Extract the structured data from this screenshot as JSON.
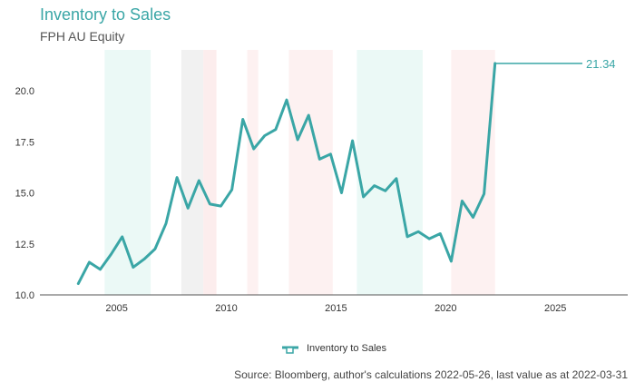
{
  "header": {
    "title": "Inventory to Sales",
    "subtitle": "FPH AU Equity"
  },
  "footer": {
    "source": "Source: Bloomberg, author's calculations 2022-05-26, last value as at 2022-03-31"
  },
  "chart_data": {
    "type": "line",
    "title": "Inventory to Sales",
    "subtitle": "FPH AU Equity",
    "xlabel": "",
    "ylabel": "",
    "xlim": [
      2001.5,
      2028.3
    ],
    "ylim": [
      10.0,
      22.0
    ],
    "x_ticks": [
      2005,
      2010,
      2015,
      2020,
      2025
    ],
    "y_ticks": [
      10.0,
      12.5,
      15.0,
      17.5,
      20.0
    ],
    "x_tick_labels": [
      "2005",
      "2010",
      "2015",
      "2020",
      "2025"
    ],
    "y_tick_labels": [
      "10.0",
      "12.5",
      "15.0",
      "17.5",
      "20.0"
    ],
    "grid": false,
    "legend_position": "bottom-center",
    "color": "#3aa6a6",
    "series": [
      {
        "name": "Inventory to Sales",
        "points": [
          [
            2003.25,
            10.55
          ],
          [
            2003.75,
            11.6
          ],
          [
            2004.25,
            11.25
          ],
          [
            2004.75,
            12.0
          ],
          [
            2005.25,
            12.85
          ],
          [
            2005.75,
            11.35
          ],
          [
            2006.25,
            11.75
          ],
          [
            2006.75,
            12.25
          ],
          [
            2007.25,
            13.5
          ],
          [
            2007.75,
            15.75
          ],
          [
            2008.25,
            14.25
          ],
          [
            2008.75,
            15.6
          ],
          [
            2009.25,
            14.45
          ],
          [
            2009.75,
            14.35
          ],
          [
            2010.25,
            15.15
          ],
          [
            2010.75,
            18.6
          ],
          [
            2011.25,
            17.15
          ],
          [
            2011.75,
            17.8
          ],
          [
            2012.25,
            18.1
          ],
          [
            2012.75,
            19.55
          ],
          [
            2013.25,
            17.6
          ],
          [
            2013.75,
            18.8
          ],
          [
            2014.25,
            16.65
          ],
          [
            2014.75,
            16.9
          ],
          [
            2015.25,
            15.0
          ],
          [
            2015.75,
            17.55
          ],
          [
            2016.25,
            14.8
          ],
          [
            2016.75,
            15.35
          ],
          [
            2017.25,
            15.1
          ],
          [
            2017.75,
            15.7
          ],
          [
            2018.25,
            12.85
          ],
          [
            2018.75,
            13.1
          ],
          [
            2019.25,
            12.75
          ],
          [
            2019.75,
            13.0
          ],
          [
            2020.25,
            11.65
          ],
          [
            2020.75,
            14.6
          ],
          [
            2021.25,
            13.8
          ],
          [
            2021.75,
            14.95
          ],
          [
            2022.25,
            21.34
          ]
        ]
      }
    ],
    "last_value": 21.34,
    "last_value_label": "21.34",
    "shaded_periods": [
      {
        "start": 2004.45,
        "end": 2006.55,
        "color": "#e6f7f4"
      },
      {
        "start": 2007.95,
        "end": 2008.95,
        "color": "#eeeeee"
      },
      {
        "start": 2008.95,
        "end": 2009.55,
        "color": "#fbe8e8"
      },
      {
        "start": 2010.95,
        "end": 2011.45,
        "color": "#fdeeee"
      },
      {
        "start": 2012.85,
        "end": 2014.85,
        "color": "#fdeeee"
      },
      {
        "start": 2015.95,
        "end": 2018.95,
        "color": "#e6f7f4"
      },
      {
        "start": 2020.25,
        "end": 2022.25,
        "color": "#fdeeee"
      }
    ]
  }
}
